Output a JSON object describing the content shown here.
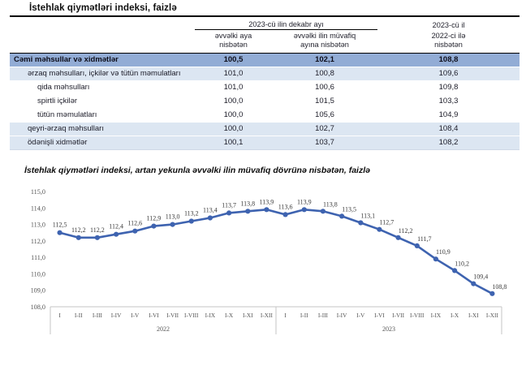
{
  "page": {
    "title": "İstehlak qiymətləri indeksi, faizlə"
  },
  "colors": {
    "total_row_bg": "#92acd5",
    "group_row_bg": "#dce6f2",
    "chart_line": "#3e63b0",
    "axis_line": "#c6c6c6",
    "axis_text": "#555555",
    "data_label_text": "#3a3a3a"
  },
  "table": {
    "header": {
      "group": "2023-cü ilin dekabr ayı",
      "col_prev_month": [
        "əvvəlki aya",
        "nisbətən"
      ],
      "col_prev_year_month": [
        "əvvəlki ilin müvafiq",
        "ayına nisbətən"
      ],
      "col_year_top": "2023-cü il",
      "col_year": [
        "2022-ci ilə",
        "nisbətən"
      ]
    },
    "rows": [
      {
        "label": "Cəmi məhsullar və xidmətlər",
        "level": "total",
        "values": [
          "100,5",
          "102,1",
          "108,8"
        ]
      },
      {
        "label": "ərzaq məhsulları, içkilər və tütün məmulatları",
        "level": "group",
        "values": [
          "101,0",
          "100,8",
          "109,6"
        ]
      },
      {
        "label": "qida məhsulları",
        "level": "sub",
        "values": [
          "101,0",
          "100,6",
          "109,8"
        ]
      },
      {
        "label": "spirtli içkilər",
        "level": "sub",
        "values": [
          "100,0",
          "101,5",
          "103,3"
        ]
      },
      {
        "label": "tütün məmulatları",
        "level": "sub",
        "values": [
          "100,0",
          "105,6",
          "104,9"
        ]
      },
      {
        "label": "qeyri-ərzaq məhsulları",
        "level": "group",
        "values": [
          "100,0",
          "102,7",
          "108,4"
        ]
      },
      {
        "label": "ödənişli xidmətlər",
        "level": "group",
        "values": [
          "100,1",
          "103,7",
          "108,2"
        ]
      }
    ]
  },
  "chart_data": {
    "type": "line",
    "title": "İstehlak qiymətləri indeksi, artan yekunla əvvəlki ilin müvafiq dövrünə nisbətən, faizlə",
    "months": [
      "I",
      "I-II",
      "I-III",
      "I-IV",
      "I-V",
      "I-VI",
      "I-VII",
      "I-VIII",
      "I-IX",
      "I-X",
      "I-XI",
      "I-XII"
    ],
    "groups": [
      {
        "year": "2022",
        "values": [
          112.5,
          112.2,
          112.2,
          112.4,
          112.6,
          112.9,
          113.0,
          113.2,
          113.4,
          113.7,
          113.8,
          113.9
        ]
      },
      {
        "year": "2023",
        "values": [
          113.6,
          113.9,
          113.8,
          113.5,
          113.1,
          112.7,
          112.2,
          111.7,
          110.9,
          110.2,
          109.4,
          108.8
        ]
      }
    ],
    "ylim": [
      108.0,
      115.0
    ],
    "ytick_step": 1.0,
    "decimal_separator": ",",
    "grid": false,
    "legend": false,
    "marker": "circle",
    "line_color": "#3e63b0",
    "data_labels": true
  }
}
